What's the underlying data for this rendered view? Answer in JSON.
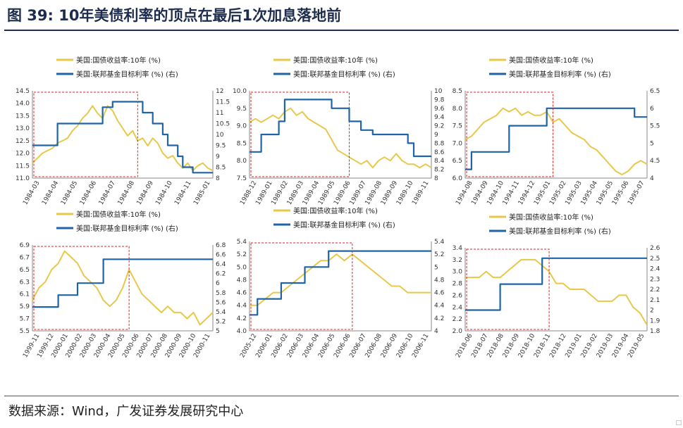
{
  "title": "图 39:   10年美债利率的顶点在最后1次加息落地前",
  "source": "数据来源：Wind，广发证券发展研究中心",
  "corner_mark": "□",
  "colors": {
    "yield": "#e8c84a",
    "ffr": "#1f64a8",
    "box": "#e02020",
    "title": "#1f2d4d"
  },
  "chart_data": [
    {
      "type": "line",
      "legend": [
        "美国:国债收益率:10年 (%)",
        "美国:联邦基金目标利率 (%) (右)"
      ],
      "xlabels": [
        "1984-03",
        "1984-04",
        "1984-05",
        "1984-06",
        "1984-07",
        "1984-08",
        "1984-09",
        "1984-10",
        "1984-11",
        "1985-01"
      ],
      "left_ticks": [
        "14.5",
        "14.0",
        "13.5",
        "13.0",
        "12.5",
        "12.0",
        "11.5",
        "11.0"
      ],
      "right_ticks": [
        "12",
        "11.5",
        "11",
        "10.5",
        "10",
        "9.5",
        "9",
        "8.5",
        "8"
      ],
      "ylim": [
        11.0,
        14.5
      ],
      "y2lim": [
        8,
        12
      ],
      "series": [
        {
          "name": "美国:国债收益率:10年 (%)",
          "axis": "left",
          "values": [
            11.6,
            11.8,
            12.0,
            12.1,
            12.2,
            12.4,
            12.5,
            12.6,
            12.9,
            13.1,
            13.4,
            13.6,
            13.9,
            13.6,
            13.4,
            13.9,
            13.7,
            13.3,
            13.0,
            12.7,
            12.9,
            12.5,
            12.6,
            12.3,
            12.6,
            12.4,
            12.0,
            11.8,
            11.9,
            11.6,
            11.4,
            11.6,
            11.3,
            11.5,
            11.6,
            11.4,
            11.3
          ]
        },
        {
          "name": "美国:联邦基金目标利率 (%) (右)",
          "axis": "right",
          "step": true,
          "values": [
            9.5,
            9.5,
            9.5,
            9.5,
            9.5,
            10.5,
            10.5,
            10.5,
            10.5,
            10.5,
            10.5,
            10.5,
            10.5,
            10.5,
            11.25,
            11.25,
            11.5,
            11.5,
            11.5,
            11.5,
            11.5,
            11.5,
            11.0,
            11.0,
            10.5,
            10.5,
            10.0,
            9.5,
            9.5,
            9.0,
            8.5,
            8.5,
            8.25,
            8.25,
            8.25,
            8.25,
            8.25
          ]
        }
      ]
    },
    {
      "type": "line",
      "legend": [
        "美国:国债收益率:10年 (%)",
        "美国:联邦基金目标利率 (%) (右)"
      ],
      "xlabels": [
        "1988-12",
        "1989-01",
        "1989-02",
        "1989-03",
        "1989-04",
        "1989-05",
        "1989-06",
        "1989-07",
        "1989-08",
        "1989-09",
        "1989-10",
        "1989-11"
      ],
      "left_ticks": [
        "10.0",
        "9.5",
        "9.0",
        "8.5",
        "8.0",
        "7.5"
      ],
      "right_ticks": [
        "10",
        "9.8",
        "9.6",
        "9.4",
        "9.2",
        "9",
        "8.8",
        "8.6",
        "8.4",
        "8.2",
        "8"
      ],
      "ylim": [
        7.5,
        10.0
      ],
      "y2lim": [
        8,
        10
      ],
      "series": [
        {
          "name": "美国:国债收益率:10年 (%)",
          "axis": "left",
          "values": [
            9.1,
            9.2,
            9.1,
            9.2,
            9.3,
            9.2,
            9.4,
            9.5,
            9.3,
            9.4,
            9.2,
            9.1,
            9.0,
            8.9,
            8.6,
            8.3,
            8.2,
            8.1,
            8.0,
            7.9,
            8.0,
            7.8,
            8.0,
            8.1,
            8.0,
            8.2,
            8.0,
            7.9,
            7.9,
            7.8,
            7.9,
            7.8
          ]
        },
        {
          "name": "美国:联邦基金目标利率 (%) (右)",
          "axis": "right",
          "step": true,
          "values": [
            8.6,
            8.6,
            9.0,
            9.0,
            9.0,
            9.3,
            9.8,
            9.8,
            9.8,
            9.8,
            9.8,
            9.8,
            9.8,
            9.8,
            9.6,
            9.6,
            9.6,
            9.3,
            9.3,
            9.1,
            9.1,
            9.0,
            9.0,
            9.0,
            9.0,
            9.0,
            9.0,
            8.8,
            8.5,
            8.5,
            8.5,
            8.5
          ]
        }
      ]
    },
    {
      "type": "line",
      "legend": [
        "美国:国债收益率:10年 (%)",
        "美国:联邦基金目标利率 (%) (右)"
      ],
      "xlabels": [
        "1994-08",
        "1994-09",
        "1994-10",
        "1994-11",
        "1994-12",
        "1995-01",
        "1995-02",
        "1995-03",
        "1995-04",
        "1995-05",
        "1995-06",
        "1995-07"
      ],
      "left_ticks": [
        "8.5",
        "8.0",
        "7.5",
        "7.0",
        "6.5",
        "6.0"
      ],
      "right_ticks": [
        "6.5",
        "6",
        "5.5",
        "5",
        "4.5",
        "4"
      ],
      "ylim": [
        6.0,
        8.5
      ],
      "y2lim": [
        4,
        6.5
      ],
      "series": [
        {
          "name": "美国:国债收益率:10年 (%)",
          "axis": "left",
          "values": [
            7.1,
            7.2,
            7.4,
            7.6,
            7.7,
            7.8,
            8.0,
            7.9,
            8.0,
            7.8,
            7.9,
            7.8,
            7.8,
            7.9,
            7.6,
            7.7,
            7.5,
            7.3,
            7.2,
            7.1,
            6.9,
            6.8,
            6.6,
            6.4,
            6.2,
            6.1,
            6.2,
            6.4,
            6.5,
            6.4
          ]
        },
        {
          "name": "美国:联邦基金目标利率 (%) (右)",
          "axis": "right",
          "step": true,
          "values": [
            4.25,
            4.75,
            4.75,
            4.75,
            4.75,
            4.75,
            4.75,
            5.5,
            5.5,
            5.5,
            5.5,
            5.5,
            5.5,
            6.0,
            6.0,
            6.0,
            6.0,
            6.0,
            6.0,
            6.0,
            6.0,
            6.0,
            6.0,
            6.0,
            6.0,
            6.0,
            6.0,
            5.75,
            5.75,
            5.75
          ]
        }
      ]
    },
    {
      "type": "line",
      "legend": [
        "美国:国债收益率:10年 (%)",
        "美国:联邦基金目标利率 (%) (右)"
      ],
      "xlabels": [
        "1999-11",
        "1999-12",
        "2000-01",
        "2000-02",
        "2000-03",
        "2000-04",
        "2000-05",
        "2000-06",
        "2000-07",
        "2000-08",
        "2000-09",
        "2000-10",
        "2000-11"
      ],
      "left_ticks": [
        "6.9",
        "6.7",
        "6.5",
        "6.3",
        "6.1",
        "5.9",
        "5.7",
        "5.5"
      ],
      "right_ticks": [
        "6.8",
        "6.6",
        "6.4",
        "6.2",
        "6",
        "5.8",
        "5.6",
        "5.4",
        "5.2",
        "5"
      ],
      "ylim": [
        5.5,
        6.9
      ],
      "y2lim": [
        5.0,
        6.8
      ],
      "series": [
        {
          "name": "美国:国债收益率:10年 (%)",
          "axis": "left",
          "values": [
            6.0,
            6.2,
            6.3,
            6.5,
            6.6,
            6.8,
            6.7,
            6.6,
            6.4,
            6.3,
            6.2,
            6.0,
            5.9,
            6.0,
            6.2,
            6.5,
            6.3,
            6.1,
            6.0,
            5.9,
            5.8,
            5.9,
            5.8,
            5.8,
            5.7,
            5.8,
            5.6,
            5.7,
            5.8
          ]
        },
        {
          "name": "美国:联邦基金目标利率 (%) (右)",
          "axis": "right",
          "step": true,
          "values": [
            5.5,
            5.5,
            5.5,
            5.5,
            5.75,
            5.75,
            5.75,
            6.0,
            6.0,
            6.0,
            6.0,
            6.5,
            6.5,
            6.5,
            6.5,
            6.5,
            6.5,
            6.5,
            6.5,
            6.5,
            6.5,
            6.5,
            6.5,
            6.5,
            6.5,
            6.5,
            6.5,
            6.5,
            6.5
          ]
        }
      ]
    },
    {
      "type": "line",
      "legend": [
        "美国:国债收益率:10年 (%)",
        "美国:联邦基金目标利率 (%) (右)"
      ],
      "xlabels": [
        "2005-12",
        "2006-01",
        "2006-02",
        "2006-03",
        "2006-04",
        "2006-05",
        "2006-06",
        "2006-07",
        "2006-08",
        "2006-09",
        "2006-10",
        "2006-11"
      ],
      "left_ticks": [
        "5.4",
        "5.2",
        "5.0",
        "4.8",
        "4.6",
        "4.4",
        "4.2",
        "4.0"
      ],
      "right_ticks": [
        "5.4",
        "5.2",
        "5",
        "4.8",
        "4.6",
        "4.4",
        "4.2",
        "4"
      ],
      "ylim": [
        4.0,
        5.4
      ],
      "y2lim": [
        4.0,
        5.4
      ],
      "series": [
        {
          "name": "美国:国债收益率:10年 (%)",
          "axis": "left",
          "values": [
            4.4,
            4.4,
            4.5,
            4.6,
            4.6,
            4.7,
            4.8,
            4.9,
            5.0,
            5.1,
            5.1,
            5.2,
            5.1,
            5.2,
            5.1,
            5.0,
            4.9,
            4.8,
            4.7,
            4.7,
            4.6,
            4.6,
            4.6,
            4.6
          ]
        },
        {
          "name": "美国:联邦基金目标利率 (%) (右)",
          "axis": "right",
          "step": true,
          "values": [
            4.25,
            4.5,
            4.5,
            4.5,
            4.75,
            4.75,
            4.75,
            5.0,
            5.0,
            5.0,
            5.25,
            5.25,
            5.25,
            5.25,
            5.25,
            5.25,
            5.25,
            5.25,
            5.25,
            5.25,
            5.25,
            5.25,
            5.25,
            5.25
          ]
        }
      ]
    },
    {
      "type": "line",
      "legend": [
        "美国:国债收益率:10年 (%)",
        "美国:联邦基金目标利率 (%) (右)"
      ],
      "xlabels": [
        "2018-06",
        "2018-07",
        "2018-08",
        "2018-09",
        "2018-10",
        "2018-11",
        "2018-12",
        "2019-01",
        "2019-02",
        "2019-03",
        "2019-04",
        "2019-05"
      ],
      "left_ticks": [
        "3.4",
        "3.2",
        "3.0",
        "2.8",
        "2.6",
        "2.4",
        "2.2",
        "2.0"
      ],
      "right_ticks": [
        "2.6",
        "2.5",
        "2.4",
        "2.3",
        "2.2",
        "2.1",
        "2",
        "1.9",
        "1.8"
      ],
      "ylim": [
        2.0,
        3.4
      ],
      "y2lim": [
        1.8,
        2.6
      ],
      "series": [
        {
          "name": "美国:国债收益率:10年 (%)",
          "axis": "left",
          "values": [
            2.9,
            2.9,
            2.9,
            3.0,
            2.9,
            2.9,
            3.0,
            3.1,
            3.2,
            3.2,
            3.2,
            3.1,
            3.0,
            2.8,
            2.8,
            2.7,
            2.7,
            2.7,
            2.6,
            2.5,
            2.5,
            2.5,
            2.6,
            2.6,
            2.4,
            2.3,
            2.1
          ]
        },
        {
          "name": "美国:联邦基金目标利率 (%) (右)",
          "axis": "right",
          "step": true,
          "values": [
            2.0,
            2.0,
            2.0,
            2.0,
            2.0,
            2.25,
            2.25,
            2.25,
            2.25,
            2.25,
            2.25,
            2.5,
            2.5,
            2.5,
            2.5,
            2.5,
            2.5,
            2.5,
            2.5,
            2.5,
            2.5,
            2.5,
            2.5,
            2.5,
            2.5,
            2.5,
            2.5
          ]
        }
      ]
    }
  ],
  "highlight_boxes": [
    {
      "from": 0,
      "to": 21
    },
    {
      "from": 0,
      "to": 17
    },
    {
      "from": 0,
      "to": 14
    },
    {
      "from": 0,
      "to": 15
    },
    {
      "from": 0,
      "to": 13
    },
    {
      "from": 0,
      "to": 12
    }
  ]
}
